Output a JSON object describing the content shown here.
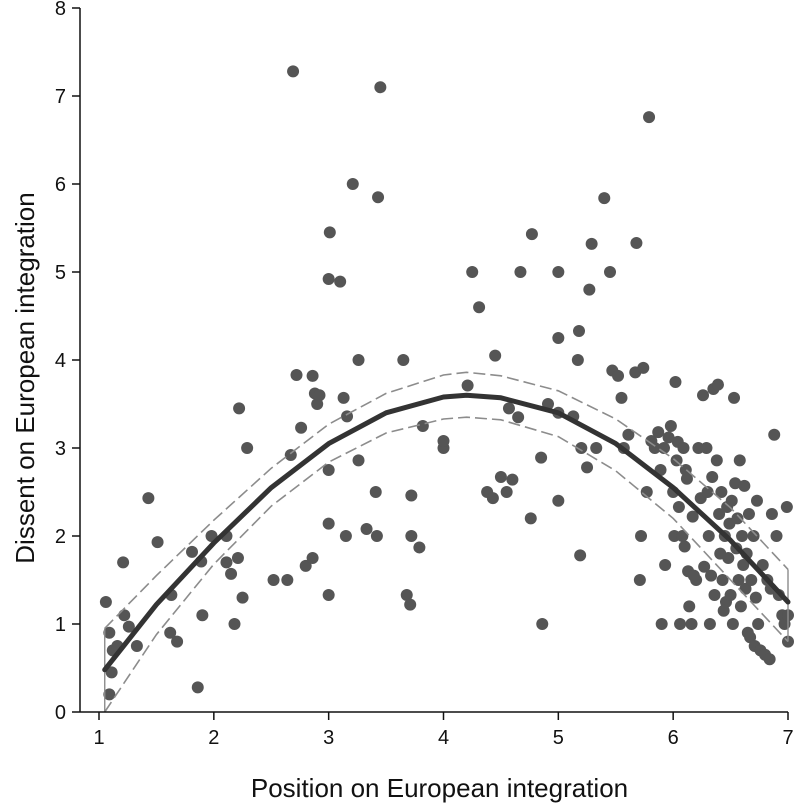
{
  "chart_data": {
    "type": "scatter",
    "title": "",
    "xlabel": "Position on European integration",
    "ylabel": "Dissent on European integration",
    "xlim": [
      1,
      7
    ],
    "ylim": [
      0,
      8
    ],
    "xticks": [
      "1",
      "2",
      "3",
      "4",
      "5",
      "6",
      "7"
    ],
    "yticks": [
      "0",
      "1",
      "2",
      "3",
      "4",
      "5",
      "6",
      "7",
      "8"
    ],
    "grid": false,
    "legend": "none",
    "colors": {
      "points": "#555555",
      "fit": "#333333",
      "ci": "#8c8c8c",
      "axis": "#111111"
    },
    "points": [
      [
        1.06,
        1.25
      ],
      [
        1.09,
        0.9
      ],
      [
        1.09,
        0.2
      ],
      [
        1.11,
        0.45
      ],
      [
        1.12,
        0.7
      ],
      [
        1.16,
        0.75
      ],
      [
        1.21,
        1.7
      ],
      [
        1.22,
        1.1
      ],
      [
        1.26,
        0.97
      ],
      [
        1.33,
        0.75
      ],
      [
        1.43,
        2.43
      ],
      [
        1.51,
        1.93
      ],
      [
        1.62,
        0.9
      ],
      [
        1.63,
        1.33
      ],
      [
        1.68,
        0.8
      ],
      [
        1.81,
        1.82
      ],
      [
        1.86,
        0.28
      ],
      [
        1.89,
        1.71
      ],
      [
        1.9,
        1.1
      ],
      [
        1.98,
        2.0
      ],
      [
        2.11,
        2.0
      ],
      [
        2.11,
        1.7
      ],
      [
        2.15,
        1.57
      ],
      [
        2.18,
        1.0
      ],
      [
        2.21,
        1.75
      ],
      [
        2.22,
        3.45
      ],
      [
        2.25,
        1.3
      ],
      [
        2.29,
        3.0
      ],
      [
        2.52,
        1.5
      ],
      [
        2.64,
        1.5
      ],
      [
        2.67,
        2.92
      ],
      [
        2.69,
        7.28
      ],
      [
        2.72,
        3.83
      ],
      [
        2.76,
        3.23
      ],
      [
        2.8,
        1.66
      ],
      [
        2.86,
        1.75
      ],
      [
        2.86,
        3.82
      ],
      [
        2.88,
        3.62
      ],
      [
        2.9,
        3.5
      ],
      [
        2.92,
        3.6
      ],
      [
        3.0,
        2.75
      ],
      [
        3.0,
        2.14
      ],
      [
        3.01,
        5.45
      ],
      [
        3.0,
        4.92
      ],
      [
        3.0,
        1.33
      ],
      [
        3.1,
        4.89
      ],
      [
        3.13,
        3.57
      ],
      [
        3.15,
        2.0
      ],
      [
        3.16,
        3.36
      ],
      [
        3.21,
        6.0
      ],
      [
        3.26,
        2.86
      ],
      [
        3.26,
        4.0
      ],
      [
        3.33,
        2.08
      ],
      [
        3.41,
        2.5
      ],
      [
        3.42,
        2.0
      ],
      [
        3.43,
        5.85
      ],
      [
        3.45,
        7.1
      ],
      [
        3.65,
        4.0
      ],
      [
        3.68,
        1.33
      ],
      [
        3.71,
        1.22
      ],
      [
        3.72,
        2.46
      ],
      [
        3.72,
        2.0
      ],
      [
        3.79,
        1.87
      ],
      [
        3.82,
        3.25
      ],
      [
        4.0,
        3.0
      ],
      [
        4.0,
        3.08
      ],
      [
        4.21,
        3.71
      ],
      [
        4.25,
        5.0
      ],
      [
        4.31,
        4.6
      ],
      [
        4.38,
        2.5
      ],
      [
        4.43,
        2.43
      ],
      [
        4.45,
        4.05
      ],
      [
        4.5,
        2.67
      ],
      [
        4.55,
        2.5
      ],
      [
        4.57,
        3.45
      ],
      [
        4.6,
        2.64
      ],
      [
        4.65,
        3.35
      ],
      [
        4.67,
        5.0
      ],
      [
        4.76,
        2.2
      ],
      [
        4.77,
        5.43
      ],
      [
        4.85,
        2.89
      ],
      [
        4.86,
        1.0
      ],
      [
        4.91,
        3.5
      ],
      [
        5.0,
        5.0
      ],
      [
        5.0,
        4.25
      ],
      [
        5.0,
        3.4
      ],
      [
        5.0,
        2.4
      ],
      [
        5.13,
        3.36
      ],
      [
        5.17,
        4.0
      ],
      [
        5.18,
        4.33
      ],
      [
        5.19,
        1.78
      ],
      [
        5.2,
        3.0
      ],
      [
        5.25,
        2.78
      ],
      [
        5.27,
        4.8
      ],
      [
        5.29,
        5.32
      ],
      [
        5.33,
        3.0
      ],
      [
        5.4,
        5.84
      ],
      [
        5.45,
        5.0
      ],
      [
        5.47,
        3.88
      ],
      [
        5.52,
        3.82
      ],
      [
        5.55,
        3.57
      ],
      [
        5.57,
        3.0
      ],
      [
        5.61,
        3.15
      ],
      [
        5.67,
        3.86
      ],
      [
        5.68,
        5.33
      ],
      [
        5.71,
        1.5
      ],
      [
        5.72,
        2.0
      ],
      [
        5.74,
        3.91
      ],
      [
        5.77,
        2.5
      ],
      [
        5.79,
        6.76
      ],
      [
        5.81,
        3.08
      ],
      [
        5.84,
        3.0
      ],
      [
        5.87,
        3.18
      ],
      [
        5.89,
        2.75
      ],
      [
        5.92,
        3.0
      ],
      [
        5.93,
        1.67
      ],
      [
        5.96,
        3.12
      ],
      [
        5.98,
        3.25
      ],
      [
        6.0,
        2.5
      ],
      [
        6.01,
        2.0
      ],
      [
        6.02,
        3.75
      ],
      [
        6.03,
        2.86
      ],
      [
        6.04,
        3.07
      ],
      [
        6.05,
        2.33
      ],
      [
        6.08,
        2.0
      ],
      [
        6.09,
        3.0
      ],
      [
        6.1,
        1.88
      ],
      [
        6.11,
        2.75
      ],
      [
        6.13,
        1.6
      ],
      [
        6.14,
        1.2
      ],
      [
        6.16,
        1.0
      ],
      [
        6.17,
        2.22
      ],
      [
        6.2,
        1.5
      ],
      [
        6.22,
        3.0
      ],
      [
        6.24,
        2.43
      ],
      [
        6.26,
        3.6
      ],
      [
        6.27,
        1.65
      ],
      [
        6.29,
        3.0
      ],
      [
        6.3,
        2.5
      ],
      [
        6.31,
        2.0
      ],
      [
        6.32,
        1.0
      ],
      [
        6.34,
        2.67
      ],
      [
        6.35,
        3.67
      ],
      [
        6.36,
        1.33
      ],
      [
        6.38,
        2.86
      ],
      [
        6.39,
        3.72
      ],
      [
        6.4,
        2.25
      ],
      [
        6.41,
        1.8
      ],
      [
        6.42,
        2.5
      ],
      [
        6.43,
        1.5
      ],
      [
        6.45,
        2.0
      ],
      [
        6.46,
        1.25
      ],
      [
        6.47,
        2.33
      ],
      [
        6.48,
        1.75
      ],
      [
        6.49,
        2.14
      ],
      [
        6.5,
        1.33
      ],
      [
        6.51,
        2.4
      ],
      [
        6.52,
        1.0
      ],
      [
        6.53,
        3.57
      ],
      [
        6.54,
        2.6
      ],
      [
        6.55,
        1.86
      ],
      [
        6.56,
        2.2
      ],
      [
        6.57,
        1.5
      ],
      [
        6.58,
        2.86
      ],
      [
        6.59,
        1.2
      ],
      [
        6.6,
        2.0
      ],
      [
        6.61,
        1.67
      ],
      [
        6.62,
        2.57
      ],
      [
        6.63,
        1.4
      ],
      [
        6.64,
        1.8
      ],
      [
        6.65,
        0.9
      ],
      [
        6.66,
        2.25
      ],
      [
        6.67,
        0.85
      ],
      [
        6.68,
        1.5
      ],
      [
        6.7,
        2.0
      ],
      [
        6.71,
        0.75
      ],
      [
        6.72,
        1.3
      ],
      [
        6.74,
        1.0
      ],
      [
        6.76,
        0.7
      ],
      [
        6.78,
        1.67
      ],
      [
        6.8,
        0.65
      ],
      [
        6.82,
        1.5
      ],
      [
        6.84,
        0.6
      ],
      [
        6.85,
        1.4
      ],
      [
        6.86,
        2.25
      ],
      [
        6.88,
        3.15
      ],
      [
        6.9,
        2.0
      ],
      [
        6.92,
        1.33
      ],
      [
        6.95,
        1.1
      ],
      [
        6.97,
        1.0
      ],
      [
        6.99,
        2.33
      ],
      [
        7.0,
        0.8
      ],
      [
        7.0,
        1.1
      ],
      [
        6.73,
        2.4
      ],
      [
        6.18,
        1.55
      ],
      [
        6.44,
        1.15
      ],
      [
        5.9,
        1.0
      ],
      [
        6.06,
        1.0
      ],
      [
        6.33,
        1.55
      ],
      [
        6.12,
        2.65
      ]
    ],
    "fit": {
      "type": "quadratic",
      "x": [
        1.05,
        1.5,
        2.0,
        2.5,
        3.0,
        3.5,
        4.0,
        4.2,
        4.5,
        5.0,
        5.5,
        6.0,
        6.5,
        7.0
      ],
      "y": [
        0.48,
        1.22,
        1.92,
        2.55,
        3.05,
        3.4,
        3.58,
        3.6,
        3.57,
        3.4,
        3.05,
        2.55,
        1.95,
        1.25
      ],
      "ci_lower": [
        0.0,
        0.88,
        1.68,
        2.34,
        2.84,
        3.17,
        3.33,
        3.35,
        3.32,
        3.13,
        2.74,
        2.2,
        1.5,
        0.8
      ],
      "ci_upper": [
        0.95,
        1.55,
        2.18,
        2.77,
        3.27,
        3.62,
        3.83,
        3.86,
        3.82,
        3.65,
        3.33,
        2.88,
        2.32,
        1.62
      ]
    }
  }
}
